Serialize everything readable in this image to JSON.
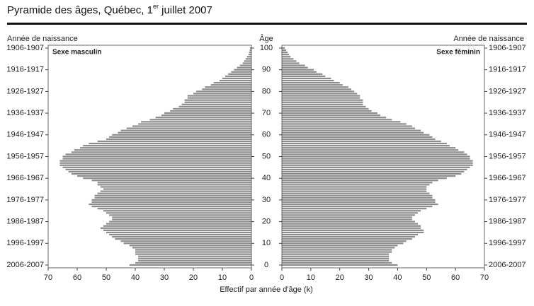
{
  "chart_data": {
    "type": "population-pyramid",
    "title": {
      "text": "Pyramide des âges, Québec, 1",
      "superscript": "er",
      "after": " juillet 2007"
    },
    "left_axis_title": "Année de naissance",
    "center_axis_title": "Âge",
    "right_axis_title": "Année de naissance",
    "xlabel": "Effectif par année d'âge (k)",
    "x": [
      0,
      1,
      2,
      3,
      4,
      5,
      6,
      7,
      8,
      9,
      10,
      11,
      12,
      13,
      14,
      15,
      16,
      17,
      18,
      19,
      20,
      21,
      22,
      23,
      24,
      25,
      26,
      27,
      28,
      29,
      30,
      31,
      32,
      33,
      34,
      35,
      36,
      37,
      38,
      39,
      40,
      41,
      42,
      43,
      44,
      45,
      46,
      47,
      48,
      49,
      50,
      51,
      52,
      53,
      54,
      55,
      56,
      57,
      58,
      59,
      60,
      61,
      62,
      63,
      64,
      65,
      66,
      67,
      68,
      69,
      70,
      71,
      72,
      73,
      74,
      75,
      76,
      77,
      78,
      79,
      80,
      81,
      82,
      83,
      84,
      85,
      86,
      87,
      88,
      89,
      90,
      91,
      92,
      93,
      94,
      95,
      96,
      97,
      98,
      99,
      100
    ],
    "xlim": [
      0,
      100
    ],
    "xticks": [
      0,
      10,
      20,
      30,
      40,
      50,
      60,
      70,
      80,
      90,
      100
    ],
    "birth_year_labels": [
      "2006-2007",
      "1996-1997",
      "1986-1987",
      "1976-1977",
      "1966-1967",
      "1956-1957",
      "1946-1947",
      "1936-1937",
      "1926-1927",
      "1916-1917",
      "1906-1907"
    ],
    "ylim": [
      0,
      70
    ],
    "yticks": [
      0,
      10,
      20,
      30,
      40,
      50,
      60,
      70
    ],
    "series": [
      {
        "name": "Sexe masculin",
        "color": "#8c8c8c",
        "values": [
          42,
          40,
          39,
          39,
          39,
          40,
          40,
          40,
          41,
          42,
          44,
          45,
          47,
          48,
          49,
          50,
          51,
          52,
          51,
          50,
          49,
          48,
          48,
          49,
          50,
          51,
          53,
          55,
          56,
          55,
          55,
          54,
          54,
          53,
          52,
          51,
          52,
          53,
          53,
          55,
          58,
          60,
          62,
          63,
          64,
          65,
          66,
          66,
          66,
          65,
          65,
          64,
          62,
          61,
          59,
          58,
          56,
          53,
          50,
          49,
          48,
          46,
          45,
          43,
          41,
          39,
          38,
          35,
          33,
          31,
          30,
          28,
          27,
          25,
          24,
          23,
          23,
          22,
          22,
          20,
          19,
          17,
          16,
          14,
          13,
          11,
          10,
          9,
          8,
          7,
          6,
          5,
          4,
          3,
          2.5,
          2,
          1.5,
          1,
          0.8,
          0.6,
          0.5
        ]
      },
      {
        "name": "Sexe féminin",
        "color": "#8c8c8c",
        "values": [
          40,
          38,
          37,
          37,
          37,
          37,
          38,
          38,
          39,
          40,
          42,
          43,
          45,
          46,
          47,
          49,
          49,
          48,
          48,
          47,
          46,
          45,
          45,
          46,
          47,
          48,
          50,
          52,
          54,
          53,
          53,
          52,
          52,
          51,
          50,
          50,
          50,
          51,
          52,
          54,
          57,
          60,
          62,
          63,
          64,
          65,
          66,
          66,
          66,
          65,
          65,
          64,
          63,
          61,
          60,
          58,
          57,
          55,
          53,
          52,
          51,
          49,
          48,
          46,
          45,
          43,
          41,
          38,
          36,
          34,
          33,
          31,
          30,
          29,
          28,
          28,
          28,
          27,
          27,
          26,
          25,
          24,
          23,
          21,
          20,
          18,
          17,
          15,
          14,
          12,
          11,
          9,
          8,
          6,
          5,
          4,
          3,
          2.5,
          2,
          1.5,
          1
        ]
      }
    ]
  }
}
